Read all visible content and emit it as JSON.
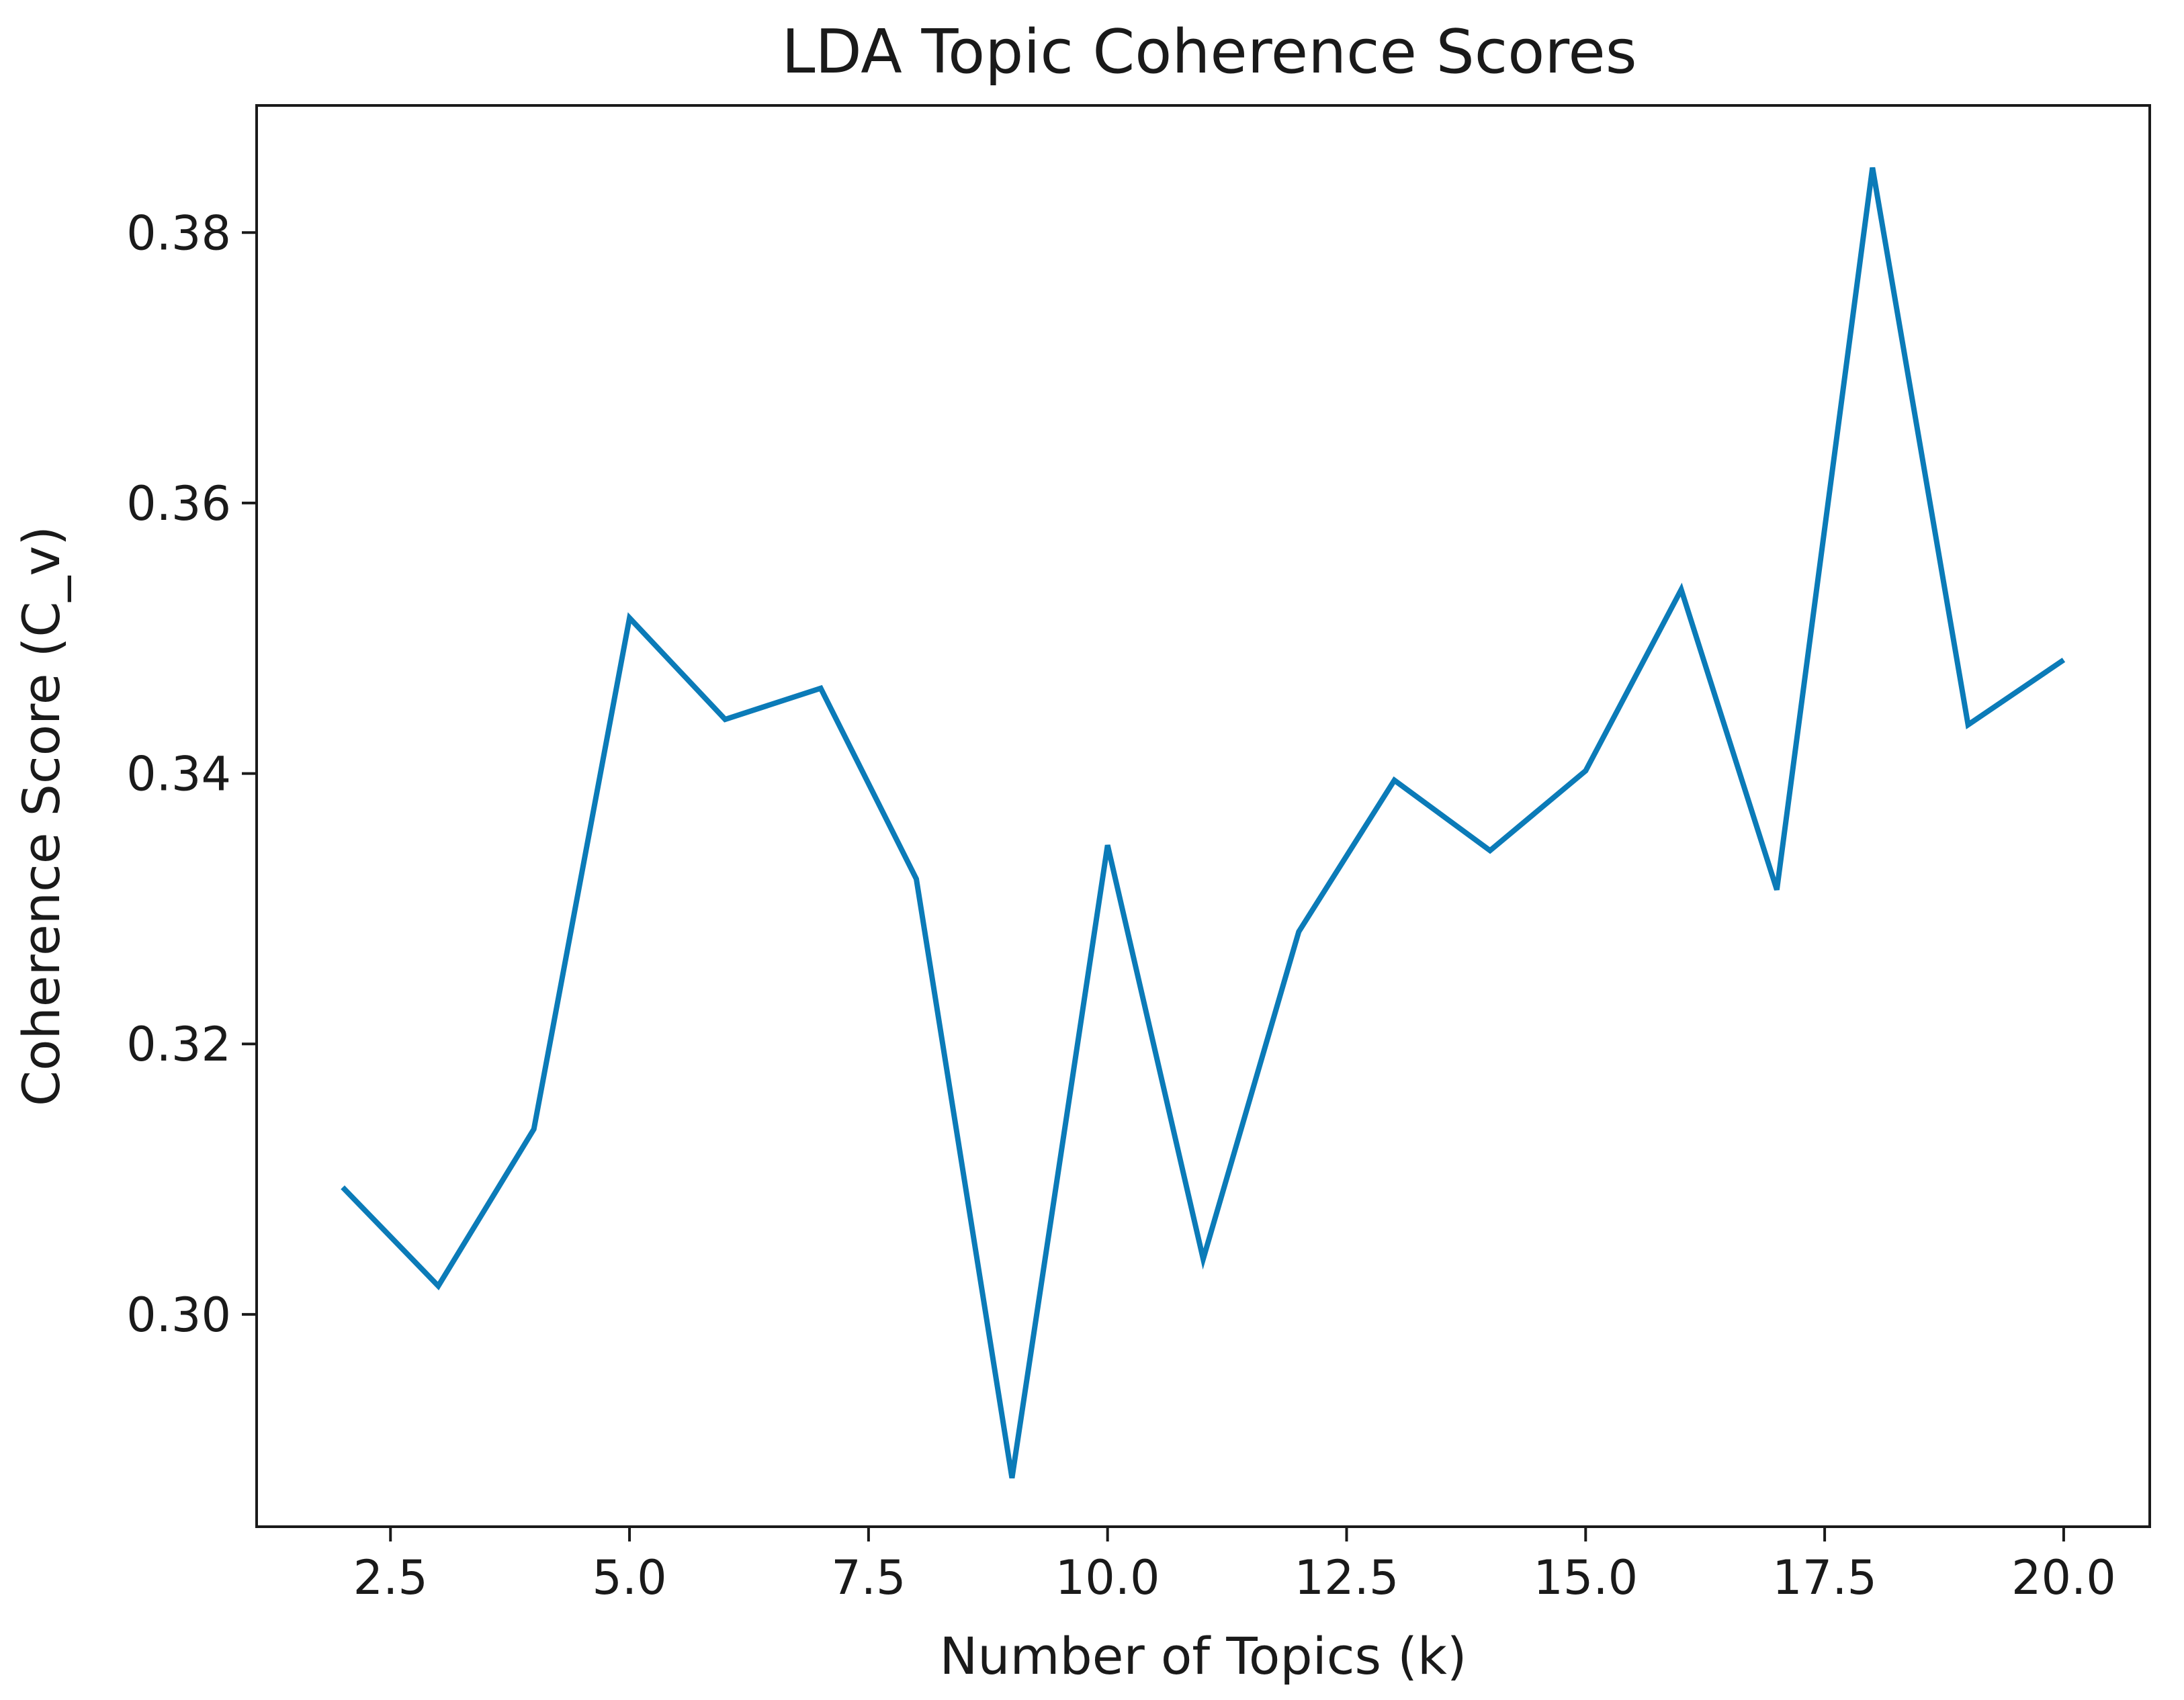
{
  "chart_data": {
    "type": "line",
    "title": "LDA Topic Coherence Scores",
    "xlabel": "Number of Topics (k)",
    "ylabel": "Coherence Score (C_v)",
    "xlim": [
      1.1,
      20.9
    ],
    "ylim": [
      0.2843,
      0.3894
    ],
    "x_ticks": [
      2.5,
      5.0,
      7.5,
      10.0,
      12.5,
      15.0,
      17.5,
      20.0
    ],
    "x_tick_labels": [
      "2.5",
      "5.0",
      "7.5",
      "10.0",
      "12.5",
      "15.0",
      "17.5",
      "20.0"
    ],
    "y_ticks": [
      0.3,
      0.32,
      0.34,
      0.36,
      0.38
    ],
    "y_tick_labels": [
      "0.30",
      "0.32",
      "0.34",
      "0.36",
      "0.38"
    ],
    "grid": false,
    "line_color": "#0b7bb8",
    "series": [
      {
        "x": [
          2,
          3,
          4,
          5,
          6,
          7,
          8,
          9,
          10,
          11,
          12,
          13,
          14,
          15,
          16,
          17,
          18,
          19,
          20
        ],
        "values": [
          0.3094,
          0.3021,
          0.3137,
          0.3515,
          0.344,
          0.3463,
          0.3322,
          0.2879,
          0.3347,
          0.3041,
          0.3283,
          0.3395,
          0.3343,
          0.3402,
          0.3536,
          0.3314,
          0.3848,
          0.3436,
          0.3484
        ]
      }
    ]
  }
}
